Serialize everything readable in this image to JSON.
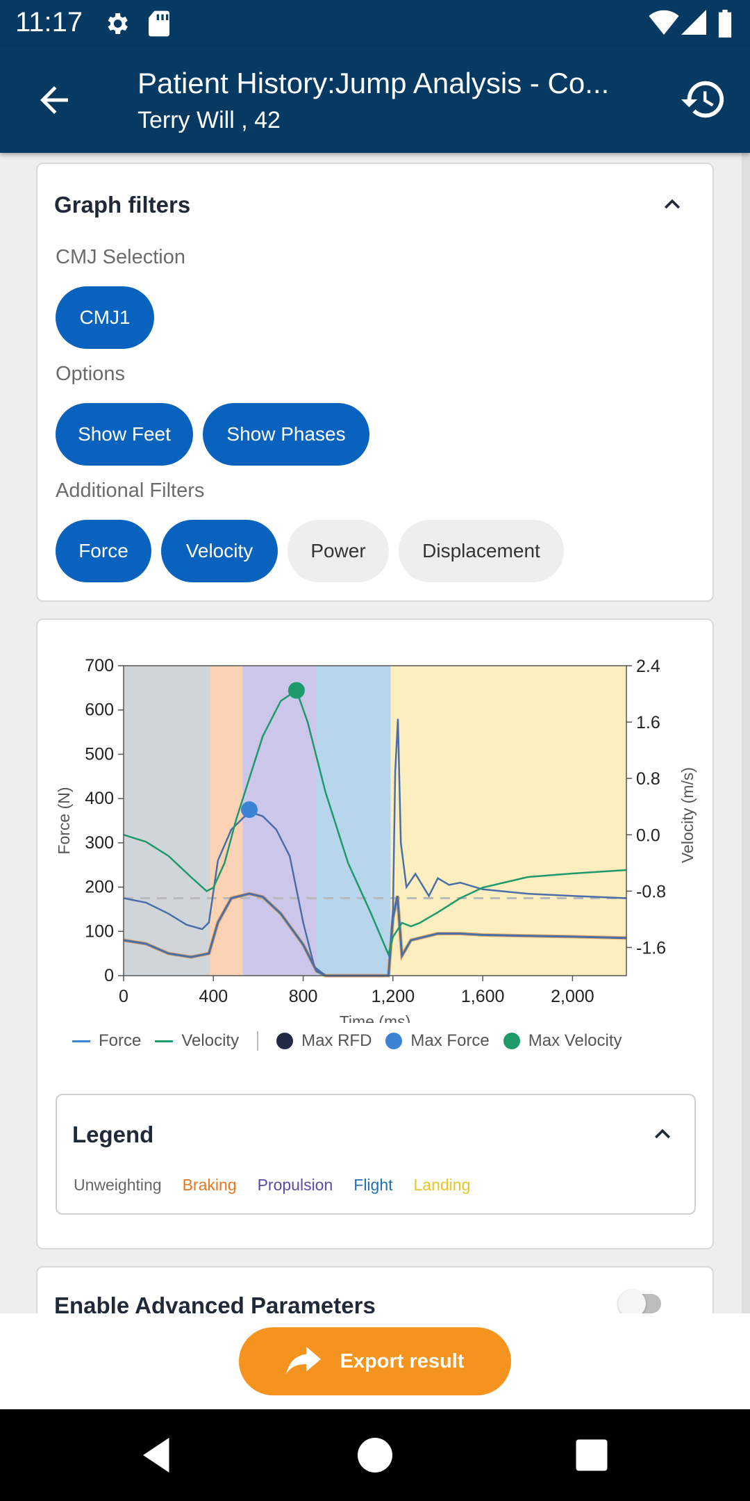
{
  "status": {
    "time": "11:17"
  },
  "appbar": {
    "title": "Patient History:Jump Analysis - Co...",
    "subtitle": "Terry Will , 42"
  },
  "filters": {
    "title": "Graph filters",
    "cmj_label": "CMJ Selection",
    "cmj_chips": [
      "CMJ1"
    ],
    "options_label": "Options",
    "option_chips": [
      "Show Feet",
      "Show Phases"
    ],
    "additional_label": "Additional Filters",
    "additional_chips": [
      {
        "label": "Force",
        "selected": true
      },
      {
        "label": "Velocity",
        "selected": true
      },
      {
        "label": "Power",
        "selected": false
      },
      {
        "label": "Displacement",
        "selected": false
      }
    ]
  },
  "chart_data": {
    "type": "line",
    "xlabel": "Time (ms)",
    "ylabel_left": "Force (N)",
    "ylabel_right": "Velocity (m/s)",
    "xlim": [
      0,
      2240
    ],
    "ylim_left": [
      0,
      700
    ],
    "ylim_right": [
      -2.0,
      2.4
    ],
    "x_ticks": [
      "0",
      "400",
      "800",
      "1,200",
      "1,600",
      "2,000"
    ],
    "y_left_ticks": [
      "0",
      "100",
      "200",
      "300",
      "400",
      "500",
      "600",
      "700"
    ],
    "y_right_ticks": [
      "2.4",
      "1.6",
      "0.8",
      "0.0",
      "-0.8",
      "-1.6"
    ],
    "phases": [
      {
        "name": "Unweighting",
        "start": 0,
        "end": 385,
        "color": "#cfd5d8"
      },
      {
        "name": "Braking",
        "start": 385,
        "end": 530,
        "color": "#fbd2b4"
      },
      {
        "name": "Propulsion",
        "start": 530,
        "end": 860,
        "color": "#ccc6ea"
      },
      {
        "name": "Flight",
        "start": 860,
        "end": 1190,
        "color": "#b8d5ee"
      },
      {
        "name": "Landing",
        "start": 1190,
        "end": 2240,
        "color": "#fdeec0"
      }
    ],
    "series": [
      {
        "name": "Force",
        "x": [
          0,
          100,
          200,
          300,
          380,
          420,
          480,
          560,
          620,
          700,
          800,
          860,
          900,
          1000,
          1100,
          1180,
          1200,
          1220,
          1240,
          1280,
          1320,
          1400,
          1500,
          1600,
          1800,
          2000,
          2240
        ],
        "y": [
          80,
          72,
          50,
          42,
          50,
          120,
          175,
          185,
          178,
          140,
          70,
          10,
          0,
          0,
          0,
          0,
          130,
          180,
          45,
          80,
          85,
          95,
          95,
          92,
          90,
          88,
          85
        ]
      },
      {
        "name": "Force (feet)",
        "x": [
          0,
          100,
          200,
          280,
          350,
          380,
          420,
          480,
          560,
          620,
          680,
          740,
          800,
          850,
          900,
          1000,
          1100,
          1180,
          1200,
          1210,
          1222,
          1235,
          1260,
          1300,
          1360,
          1400,
          1450,
          1500,
          1600,
          1800,
          2000,
          2240
        ],
        "y": [
          175,
          165,
          140,
          115,
          105,
          120,
          260,
          330,
          370,
          360,
          330,
          270,
          120,
          20,
          0,
          0,
          0,
          0,
          150,
          460,
          580,
          300,
          200,
          230,
          180,
          220,
          205,
          210,
          195,
          185,
          180,
          175
        ]
      },
      {
        "name": "Velocity",
        "x": [
          0,
          100,
          200,
          300,
          370,
          400,
          450,
          500,
          560,
          620,
          700,
          770,
          820,
          900,
          1000,
          1100,
          1180,
          1200,
          1240,
          1280,
          1320,
          1400,
          1500,
          1600,
          1800,
          2000,
          2240
        ],
        "y": [
          0.0,
          -0.1,
          -0.3,
          -0.6,
          -0.8,
          -0.75,
          -0.4,
          0.2,
          0.8,
          1.4,
          1.9,
          2.05,
          1.6,
          0.6,
          -0.4,
          -1.1,
          -1.7,
          -1.45,
          -1.25,
          -1.3,
          -1.25,
          -1.1,
          -0.9,
          -0.75,
          -0.6,
          -0.55,
          -0.5
        ]
      }
    ],
    "markers": [
      {
        "name": "Max Force",
        "x": 560,
        "y": 375,
        "axis": "left",
        "color": "#3d83d4"
      },
      {
        "name": "Max Velocity",
        "x": 770,
        "y": 2.05,
        "axis": "right",
        "color": "#1e9a6a"
      }
    ],
    "legend": [
      {
        "label": "Force",
        "kind": "line",
        "color": "#3d83d4"
      },
      {
        "label": "Velocity",
        "kind": "line",
        "color": "#1e9a6a"
      },
      {
        "label": "Max RFD",
        "kind": "dot",
        "color": "#222b45"
      },
      {
        "label": "Max Force",
        "kind": "dot",
        "color": "#3d83d4"
      },
      {
        "label": "Max Velocity",
        "kind": "dot",
        "color": "#1e9a6a"
      }
    ],
    "grid": false
  },
  "legend_box": {
    "title": "Legend",
    "items": [
      {
        "label": "Unweighting",
        "color": "#666666"
      },
      {
        "label": "Braking",
        "color": "#e8761e"
      },
      {
        "label": "Propulsion",
        "color": "#5d4aa8"
      },
      {
        "label": "Flight",
        "color": "#1e6fb8"
      },
      {
        "label": "Landing",
        "color": "#e8c42a"
      }
    ]
  },
  "advanced": {
    "title": "Enable Advanced Parameters",
    "enabled": false
  },
  "export": {
    "label": "Export result"
  }
}
